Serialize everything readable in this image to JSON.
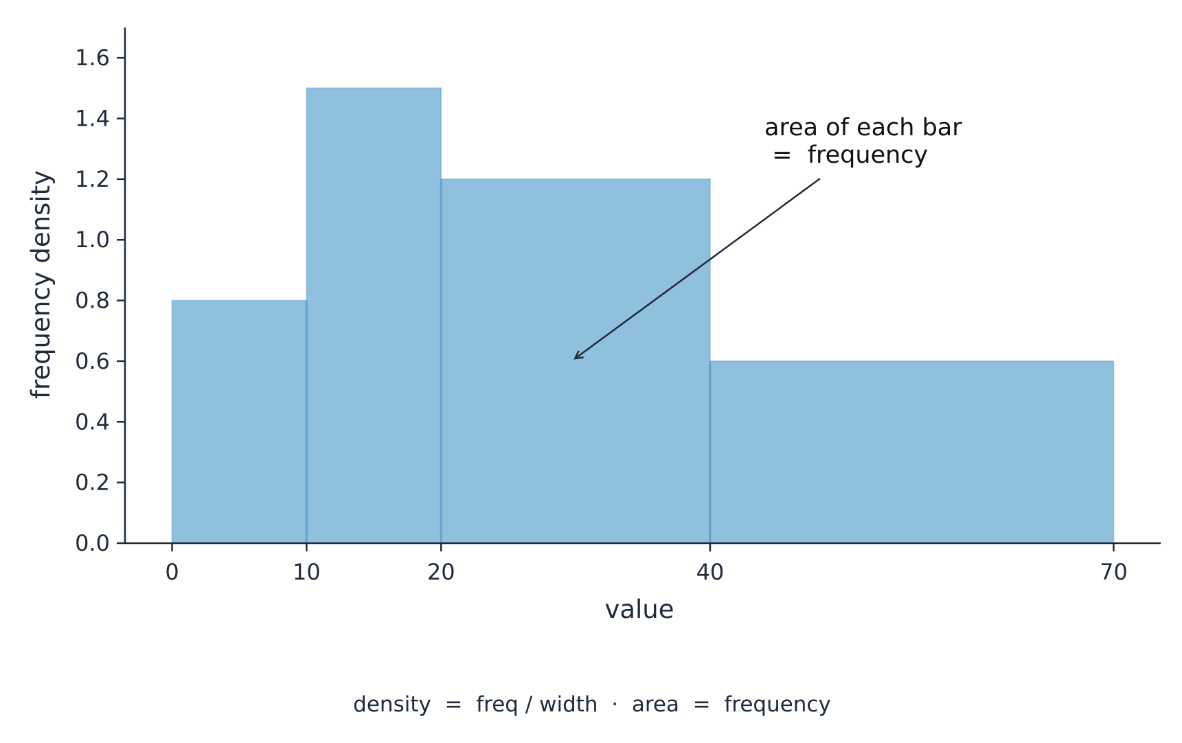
{
  "chart_data": {
    "type": "bar",
    "title": "",
    "xlabel": "value",
    "ylabel": "frequency density",
    "bins": [
      {
        "start": 0,
        "end": 10,
        "density": 0.8
      },
      {
        "start": 10,
        "end": 20,
        "density": 1.5
      },
      {
        "start": 20,
        "end": 40,
        "density": 1.2
      },
      {
        "start": 40,
        "end": 70,
        "density": 0.6
      }
    ],
    "x_ticks": [
      0,
      10,
      20,
      40,
      70
    ],
    "x_tick_labels": [
      "0",
      "10",
      "20",
      "40",
      "70"
    ],
    "y_ticks": [
      0.0,
      0.2,
      0.4,
      0.6,
      0.8,
      1.0,
      1.2,
      1.4,
      1.6
    ],
    "y_tick_labels": [
      "0.0",
      "0.2",
      "0.4",
      "0.6",
      "0.8",
      "1.0",
      "1.2",
      "1.4",
      "1.6"
    ],
    "xlim": [
      -3.5,
      73.5
    ],
    "ylim": [
      0,
      1.7
    ],
    "grid": false,
    "bar_color": "#8fc0dd",
    "bar_edge_color": "#5a9ec9",
    "axis_color": "#1f2a3a",
    "annotation": {
      "lines": [
        "area of each bar",
        " =  frequency"
      ],
      "arrow_target": {
        "x": 30,
        "y": 0.61
      }
    },
    "caption": "density  =  freq / width  ·  area  =  frequency"
  }
}
